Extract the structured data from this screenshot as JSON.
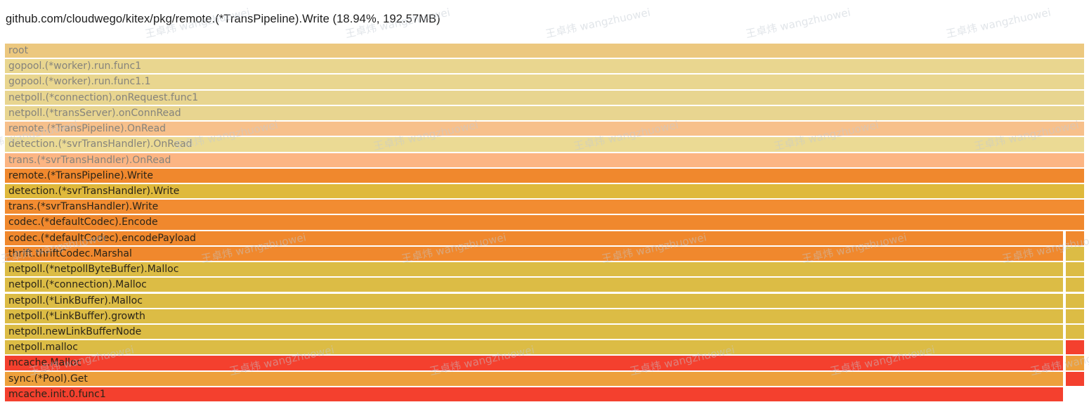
{
  "title": "github.com/cloudwego/kitex/pkg/remote.(*TransPipeline).Write (18.94%, 192.57MB)",
  "watermark": {
    "text": "王卓炜 wangzhuowei",
    "color": "#c2cad3"
  },
  "colors": {
    "orange": "#f0882d",
    "mustard": "#dcbc45",
    "red": "#f4402e",
    "amber": "#eda03c",
    "faded_text": "#85837c",
    "active_text": "#2a2418"
  },
  "flamegraph": {
    "rows": [
      {
        "label": "root",
        "bg": "#ecc87f",
        "fg": "#85837c",
        "span": "full",
        "side": null
      },
      {
        "label": "gopool.(*worker).run.func1",
        "bg": "#e9d68f",
        "fg": "#85837c",
        "span": "full",
        "side": null
      },
      {
        "label": "gopool.(*worker).run.func1.1",
        "bg": "#e9d68f",
        "fg": "#85837c",
        "span": "full",
        "side": null
      },
      {
        "label": "netpoll.(*connection).onRequest.func1",
        "bg": "#e8d590",
        "fg": "#85837c",
        "span": "full",
        "side": null
      },
      {
        "label": "netpoll.(*transServer).onConnRead",
        "bg": "#e8d590",
        "fg": "#85837c",
        "span": "full",
        "side": null
      },
      {
        "label": "remote.(*TransPipeline).OnRead",
        "bg": "#f7c08b",
        "fg": "#85837c",
        "span": "full",
        "side": null
      },
      {
        "label": "detection.(*svrTransHandler).OnRead",
        "bg": "#ebda94",
        "fg": "#85837c",
        "span": "full",
        "side": null
      },
      {
        "label": "trans.(*svrTransHandler).OnRead",
        "bg": "#fcb583",
        "fg": "#85837c",
        "span": "full",
        "side": null
      },
      {
        "label": "remote.(*TransPipeline).Write",
        "bg": "#f0882d",
        "fg": "#2a2418",
        "span": "full",
        "side": null
      },
      {
        "label": "detection.(*svrTransHandler).Write",
        "bg": "#dfb93c",
        "fg": "#2a2418",
        "span": "full",
        "side": null
      },
      {
        "label": "trans.(*svrTransHandler).Write",
        "bg": "#f28c31",
        "fg": "#2a2418",
        "span": "full",
        "side": null
      },
      {
        "label": "codec.(*defaultCodec).Encode",
        "bg": "#f0882d",
        "fg": "#2a2418",
        "span": "full",
        "side": null
      },
      {
        "label": "codec.(*defaultCodec).encodePayload",
        "bg": "#f0882d",
        "fg": "#2a2418",
        "span": "split",
        "side": "#f0892f"
      },
      {
        "label": "thrift.thriftCodec.Marshal",
        "bg": "#f0882d",
        "fg": "#2a2418",
        "span": "split",
        "side": "#dcbc45"
      },
      {
        "label": "netpoll.(*netpollByteBuffer).Malloc",
        "bg": "#dcbc45",
        "fg": "#2a2418",
        "span": "split",
        "side": "#dcbc45"
      },
      {
        "label": "netpoll.(*connection).Malloc",
        "bg": "#dcbc45",
        "fg": "#2a2418",
        "span": "split",
        "side": "#dcbc45"
      },
      {
        "label": "netpoll.(*LinkBuffer).Malloc",
        "bg": "#dcbc45",
        "fg": "#2a2418",
        "span": "split",
        "side": "#dcbc45"
      },
      {
        "label": "netpoll.(*LinkBuffer).growth",
        "bg": "#dcbc45",
        "fg": "#2a2418",
        "span": "split",
        "side": "#dcbc45"
      },
      {
        "label": "netpoll.newLinkBufferNode",
        "bg": "#dcbc45",
        "fg": "#2a2418",
        "span": "split",
        "side": "#dcbc45"
      },
      {
        "label": "netpoll.malloc",
        "bg": "#dcbc45",
        "fg": "#2a2418",
        "span": "split",
        "side": "#f4402e"
      },
      {
        "label": "mcache.Malloc",
        "bg": "#f4402e",
        "fg": "#2a2418",
        "span": "split",
        "side": "#eda03c"
      },
      {
        "label": "sync.(*Pool).Get",
        "bg": "#eda03c",
        "fg": "#2a2418",
        "span": "split",
        "side": "#f4402e"
      },
      {
        "label": "mcache.init.0.func1",
        "bg": "#f4402e",
        "fg": "#2a2418",
        "span": "split",
        "side": null
      }
    ]
  },
  "layout_note_values": {
    "selected_percent": "18.94%",
    "selected_size": "192.57MB"
  }
}
